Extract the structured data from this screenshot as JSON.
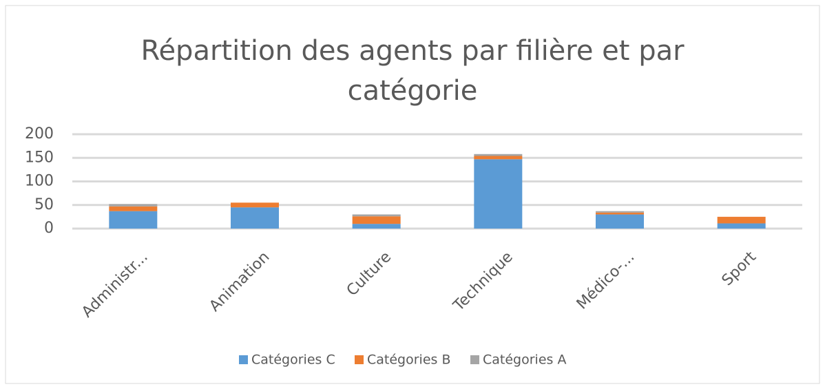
{
  "chart_data": {
    "type": "stacked_bar",
    "title": "Répartition des agents par filière et par catégorie",
    "categories": [
      "Administr...",
      "Animation",
      "Culture",
      "Technique",
      "Médico-...",
      "Sport"
    ],
    "series": [
      {
        "name": "Catégories C",
        "color": "#5b9bd5",
        "values": [
          37,
          45,
          10,
          147,
          30,
          11
        ]
      },
      {
        "name": "Catégories B",
        "color": "#ed7d31",
        "values": [
          10,
          10,
          16,
          7,
          4,
          14
        ]
      },
      {
        "name": "Catégories A",
        "color": "#a5a5a5",
        "values": [
          5,
          0,
          4,
          4,
          3,
          0
        ]
      }
    ],
    "ylim": [
      0,
      200
    ],
    "yticks": [
      0,
      50,
      100,
      150,
      200
    ],
    "grid": true,
    "legend": "bottom"
  }
}
